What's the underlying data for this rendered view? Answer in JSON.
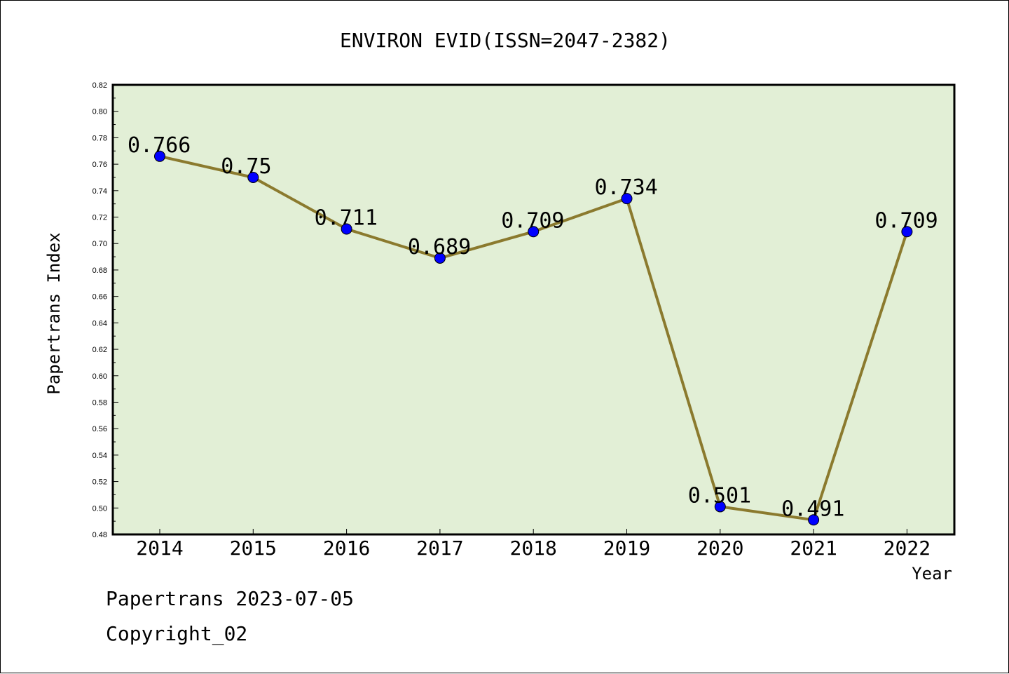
{
  "chart_data": {
    "type": "line",
    "title": "ENVIRON EVID(ISSN=2047-2382)",
    "xlabel": "Year",
    "ylabel": "Papertrans Index",
    "categories": [
      "2014",
      "2015",
      "2016",
      "2017",
      "2018",
      "2019",
      "2020",
      "2021",
      "2022"
    ],
    "series": [
      {
        "values": [
          0.766,
          0.75,
          0.711,
          0.689,
          0.709,
          0.734,
          0.501,
          0.491,
          0.709
        ]
      }
    ],
    "data_labels": [
      "0.766",
      "0.75",
      "0.711",
      "0.689",
      "0.709",
      "0.734",
      "0.501",
      "0.491",
      "0.709"
    ],
    "ylim": [
      0.48,
      0.82
    ],
    "ytick_labels": [
      "0.48",
      "0.50",
      "0.52",
      "0.54",
      "0.56",
      "0.58",
      "0.60",
      "0.62",
      "0.64",
      "0.66",
      "0.68",
      "0.70",
      "0.72",
      "0.74",
      "0.76",
      "0.78",
      "0.80",
      "0.82"
    ],
    "grid": false,
    "colors": {
      "plot_background": "#e2efd6",
      "line": "#8b7a2e",
      "marker": "#0000ff"
    }
  },
  "footer": {
    "line1": "Papertrans 2023-07-05",
    "line2": "Copyright_02"
  }
}
